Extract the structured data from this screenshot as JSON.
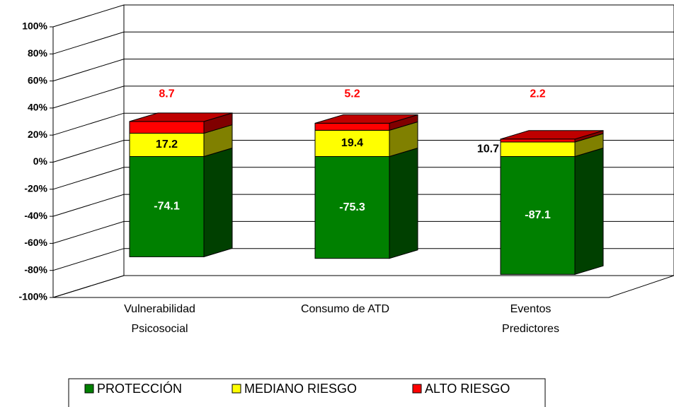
{
  "chart_data": {
    "type": "bar3d_stacked",
    "categories": [
      "Vulnerabilidad Psicosocial",
      "Consumo de ATD",
      "Eventos Predictores"
    ],
    "series": [
      {
        "name": "PROTECCIÓN",
        "color": "#008000",
        "values": [
          -74.1,
          -75.3,
          -87.1
        ]
      },
      {
        "name": "MEDIANO RIESGO",
        "color": "#ffff00",
        "values": [
          17.2,
          19.4,
          10.7
        ]
      },
      {
        "name": "ALTO RIESGO",
        "color": "#ff0000",
        "values": [
          8.7,
          5.2,
          2.2
        ]
      }
    ],
    "ylim": [
      -100,
      100
    ],
    "yticks": [
      {
        "value": -100,
        "label": "-100%"
      },
      {
        "value": -80,
        "label": "-80%"
      },
      {
        "value": -60,
        "label": "-60%"
      },
      {
        "value": -40,
        "label": "-40%"
      },
      {
        "value": -20,
        "label": "-20%"
      },
      {
        "value": 0,
        "label": "0%"
      },
      {
        "value": 20,
        "label": "20%"
      },
      {
        "value": 40,
        "label": "40%"
      },
      {
        "value": 60,
        "label": "60%"
      },
      {
        "value": 80,
        "label": "80%"
      },
      {
        "value": 100,
        "label": "100%"
      }
    ],
    "grid": true,
    "legend": "bottom"
  }
}
